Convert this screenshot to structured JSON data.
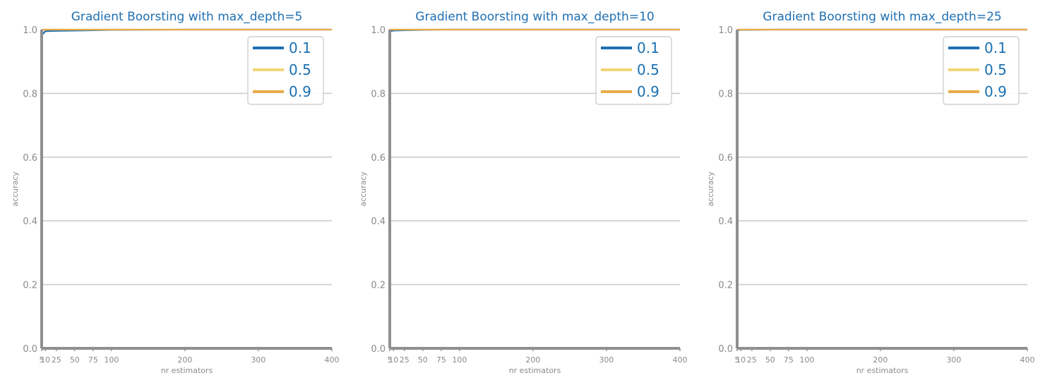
{
  "colors": {
    "title": "#1f6fb2",
    "tick": "#8a8a8a",
    "axis": "#8f8f8f",
    "grid": "#cccccc",
    "legend_text": "#1a70b2",
    "legend_border": "#cfcfcf"
  },
  "chart_data": [
    {
      "type": "line",
      "title": "Gradient Boorsting with max_depth=5",
      "xlabel": "nr estimators",
      "ylabel": "accuracy",
      "xlim": [
        5,
        400
      ],
      "ylim": [
        0.0,
        1.0
      ],
      "xticks": [
        5,
        10,
        25,
        50,
        75,
        100,
        200,
        300,
        400
      ],
      "yticks": [
        0.0,
        0.2,
        0.4,
        0.6,
        0.8,
        1.0
      ],
      "yticklabels": [
        "0.0",
        "0.2",
        "0.4",
        "0.6",
        "0.8",
        "1.0"
      ],
      "grid": true,
      "legend_position": "top-right",
      "x": [
        5,
        10,
        25,
        50,
        75,
        100,
        200,
        300,
        400
      ],
      "series": [
        {
          "name": "0.1",
          "color": "#1f6fb2",
          "values": [
            0.982,
            0.995,
            0.996,
            0.997,
            0.998,
            0.999,
            1.0,
            1.0,
            1.0
          ]
        },
        {
          "name": "0.5",
          "color": "#f2d675",
          "values": [
            0.999,
            1.0,
            1.0,
            1.0,
            1.0,
            1.0,
            1.0,
            1.0,
            1.0
          ]
        },
        {
          "name": "0.9",
          "color": "#e8ac4a",
          "values": [
            1.0,
            1.0,
            1.0,
            1.0,
            1.0,
            1.0,
            1.0,
            1.0,
            1.0
          ]
        }
      ]
    },
    {
      "type": "line",
      "title": "Gradient Boorsting with max_depth=10",
      "xlabel": "nr estimators",
      "ylabel": "accuracy",
      "xlim": [
        5,
        400
      ],
      "ylim": [
        0.0,
        1.0
      ],
      "xticks": [
        5,
        10,
        25,
        50,
        75,
        100,
        200,
        300,
        400
      ],
      "yticks": [
        0.0,
        0.2,
        0.4,
        0.6,
        0.8,
        1.0
      ],
      "yticklabels": [
        "0.0",
        "0.2",
        "0.4",
        "0.6",
        "0.8",
        "1.0"
      ],
      "grid": true,
      "legend_position": "top-right",
      "x": [
        5,
        10,
        25,
        50,
        75,
        100,
        200,
        300,
        400
      ],
      "series": [
        {
          "name": "0.1",
          "color": "#1f6fb2",
          "values": [
            0.994,
            0.997,
            0.998,
            0.999,
            1.0,
            1.0,
            1.0,
            1.0,
            1.0
          ]
        },
        {
          "name": "0.5",
          "color": "#f2d675",
          "values": [
            1.0,
            1.0,
            1.0,
            1.0,
            1.0,
            1.0,
            1.0,
            1.0,
            1.0
          ]
        },
        {
          "name": "0.9",
          "color": "#e8ac4a",
          "values": [
            1.0,
            1.0,
            1.0,
            1.0,
            1.0,
            1.0,
            1.0,
            1.0,
            1.0
          ]
        }
      ]
    },
    {
      "type": "line",
      "title": "Gradient Boorsting with max_depth=25",
      "xlabel": "nr estimators",
      "ylabel": "accuracy",
      "xlim": [
        5,
        400
      ],
      "ylim": [
        0.0,
        1.0
      ],
      "xticks": [
        5,
        10,
        25,
        50,
        75,
        100,
        200,
        300,
        400
      ],
      "yticks": [
        0.0,
        0.2,
        0.4,
        0.6,
        0.8,
        1.0
      ],
      "yticklabels": [
        "0.0",
        "0.2",
        "0.4",
        "0.6",
        "0.8",
        "1.0"
      ],
      "grid": true,
      "legend_position": "top-right",
      "x": [
        5,
        10,
        25,
        50,
        75,
        100,
        200,
        300,
        400
      ],
      "series": [
        {
          "name": "0.1",
          "color": "#1f6fb2",
          "values": [
            0.998,
            0.999,
            0.999,
            1.0,
            1.0,
            1.0,
            1.0,
            1.0,
            1.0
          ]
        },
        {
          "name": "0.5",
          "color": "#f2d675",
          "values": [
            1.0,
            1.0,
            1.0,
            1.0,
            1.0,
            1.0,
            1.0,
            1.0,
            1.0
          ]
        },
        {
          "name": "0.9",
          "color": "#e8ac4a",
          "values": [
            1.0,
            1.0,
            1.0,
            1.0,
            1.0,
            1.0,
            1.0,
            1.0,
            1.0
          ]
        }
      ]
    }
  ]
}
